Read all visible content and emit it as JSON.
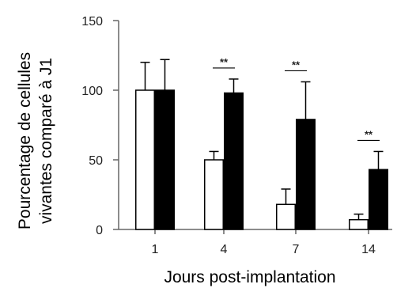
{
  "chart_data": {
    "type": "bar",
    "title": "",
    "xlabel": "Jours post-implantation",
    "ylabel": "Pourcentage de cellules vivantes comparé à J1",
    "ylabel_lines": [
      "Pourcentage de cellules",
      "vivantes comparé à J1"
    ],
    "categories": [
      "1",
      "4",
      "7",
      "14"
    ],
    "yticks": [
      "0",
      "50",
      "100",
      "150"
    ],
    "ylim": [
      0,
      150
    ],
    "grid": false,
    "legend": "none",
    "series": [
      {
        "fill": "#ffffff",
        "values": [
          100,
          50,
          18,
          7
        ],
        "errors": [
          20,
          6,
          11,
          4
        ]
      },
      {
        "fill": "#000000",
        "values": [
          100,
          98,
          79,
          43
        ],
        "errors": [
          22,
          10,
          27,
          13
        ]
      }
    ],
    "annotations": [
      {
        "category": "4",
        "text": "**"
      },
      {
        "category": "7",
        "text": "**"
      },
      {
        "category": "14",
        "text": "**"
      }
    ]
  }
}
